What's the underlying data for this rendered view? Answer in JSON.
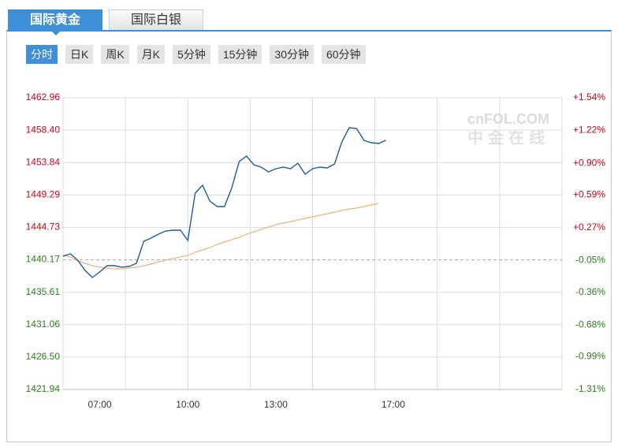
{
  "tabs": [
    "国际黄金",
    "国际白银"
  ],
  "active_tab": 0,
  "periods": [
    "分时",
    "日K",
    "周K",
    "月K",
    "5分钟",
    "15分钟",
    "30分钟",
    "60分钟"
  ],
  "active_period": 0,
  "watermark": {
    "logo": "cnFOL.COM",
    "name": "中金在线"
  },
  "chart_data": {
    "type": "line",
    "x": [
      5.75,
      6,
      6.25,
      6.5,
      6.75,
      7,
      7.25,
      7.5,
      7.75,
      8,
      8.25,
      8.5,
      8.75,
      9,
      9.25,
      9.5,
      9.75,
      10,
      10.25,
      10.5,
      10.75,
      11,
      11.25,
      11.5,
      11.75,
      12,
      12.25,
      12.5,
      12.75,
      13,
      13.25,
      13.5,
      13.75,
      14,
      14.25,
      14.5,
      14.75,
      15,
      15.25,
      15.5,
      15.75,
      16,
      16.25,
      16.5,
      16.75
    ],
    "xlim": [
      5.75,
      22.75
    ],
    "xticks": [
      {
        "value": 7,
        "label": "07:00"
      },
      {
        "value": 10,
        "label": "10:00"
      },
      {
        "value": 13,
        "label": "13:00"
      },
      {
        "value": 17,
        "label": "17:00"
      }
    ],
    "ylim": [
      1421.94,
      1462.96
    ],
    "yticks": [
      {
        "value": 1462.96,
        "label": "1462.96"
      },
      {
        "value": 1458.4,
        "label": "1458.40"
      },
      {
        "value": 1453.84,
        "label": "1453.84"
      },
      {
        "value": 1449.29,
        "label": "1449.29"
      },
      {
        "value": 1444.73,
        "label": "1444.73"
      },
      {
        "value": 1440.17,
        "label": "1440.17"
      },
      {
        "value": 1435.61,
        "label": "1435.61"
      },
      {
        "value": 1431.06,
        "label": "1431.06"
      },
      {
        "value": 1426.5,
        "label": "1426.50"
      },
      {
        "value": 1421.94,
        "label": "1421.94"
      }
    ],
    "y2lim": [
      -1.31,
      1.54
    ],
    "y2ticks": [
      {
        "value": 1.54,
        "label": "+1.54%"
      },
      {
        "value": 1.22,
        "label": "+1.22%"
      },
      {
        "value": 0.9,
        "label": "+0.90%"
      },
      {
        "value": 0.59,
        "label": "+0.59%"
      },
      {
        "value": 0.27,
        "label": "+0.27%"
      },
      {
        "value": -0.05,
        "label": "-0.05%"
      },
      {
        "value": -0.36,
        "label": "-0.36%"
      },
      {
        "value": -0.68,
        "label": "-0.68%"
      },
      {
        "value": -0.99,
        "label": "-0.99%"
      },
      {
        "value": -1.31,
        "label": "-1.31%"
      }
    ],
    "baseline": 1440.17,
    "grid": true,
    "series": [
      {
        "color": "#1f5c99",
        "values": [
          1440.68,
          1441.01,
          1440.12,
          1438.68,
          1437.68,
          1438.46,
          1439.35,
          1439.35,
          1439.13,
          1439.24,
          1439.68,
          1442.78,
          1443.23,
          1443.78,
          1444.22,
          1444.34,
          1444.34,
          1442.89,
          1449.55,
          1450.65,
          1448.44,
          1447.66,
          1447.66,
          1450.32,
          1453.98,
          1454.76,
          1453.54,
          1453.2,
          1452.54,
          1452.98,
          1453.2,
          1452.98,
          1453.76,
          1452.21,
          1452.98,
          1453.2,
          1453.09,
          1453.65,
          1456.75,
          1458.75,
          1458.64,
          1456.97,
          1456.64,
          1456.53,
          1456.97
        ]
      },
      {
        "color": "#f0b27a",
        "values": [
          1440.9,
          1440.57,
          1440.01,
          1439.68,
          1439.35,
          1439.13,
          1439.01,
          1438.9,
          1438.9,
          1439.01,
          1439.13,
          1439.35,
          1439.57,
          1439.9,
          1440.12,
          1440.35,
          1440.57,
          1440.79,
          1441.23,
          1441.56,
          1441.9,
          1442.34,
          1442.67,
          1443.01,
          1443.34,
          1443.78,
          1444.11,
          1444.45,
          1444.78,
          1445.11,
          1445.33,
          1445.55,
          1445.78,
          1446,
          1446.22,
          1446.44,
          1446.66,
          1446.89,
          1447.11,
          1447.33,
          1447.44,
          1447.66,
          1447.88,
          1448.1,
          null
        ]
      }
    ]
  }
}
